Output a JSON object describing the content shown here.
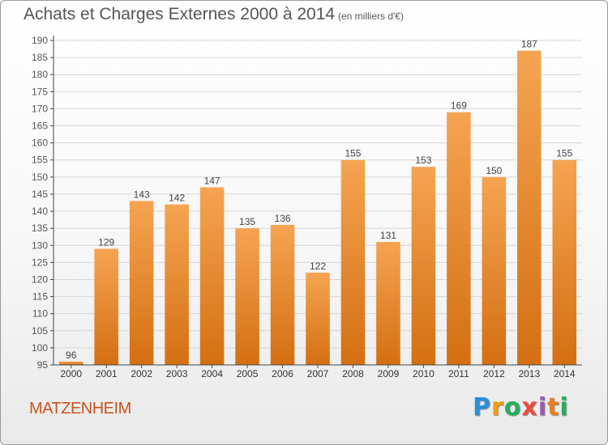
{
  "title": "Achats et Charges Externes 2000 à 2014",
  "subtitle": "(en milliers d'€)",
  "commune": "MATZENHEIM",
  "brand": {
    "letters": [
      "P",
      "r",
      "o",
      "x",
      "i",
      "t",
      "i"
    ],
    "colors": [
      "#2a8fd6",
      "#f39c12",
      "#27ae60",
      "#e74c3c",
      "#9b59b6",
      "#e67e22",
      "#27ae60"
    ]
  },
  "colors": {
    "bar_light": "#f5a452",
    "bar_dark": "#d46f12",
    "grid": "#d6d6d6",
    "axis": "#444444",
    "text": "#555555"
  },
  "chart_data": {
    "type": "bar",
    "categories": [
      "2000",
      "2001",
      "2002",
      "2003",
      "2004",
      "2005",
      "2006",
      "2007",
      "2008",
      "2009",
      "2010",
      "2011",
      "2012",
      "2013",
      "2014"
    ],
    "values": [
      96,
      129,
      143,
      142,
      147,
      135,
      136,
      122,
      155,
      131,
      153,
      169,
      150,
      187,
      155
    ],
    "ylim": [
      95,
      190
    ],
    "yticks": [
      95,
      100,
      105,
      110,
      115,
      120,
      125,
      130,
      135,
      140,
      145,
      150,
      155,
      160,
      165,
      170,
      175,
      180,
      185,
      190
    ],
    "grid": true,
    "legend": "none"
  }
}
